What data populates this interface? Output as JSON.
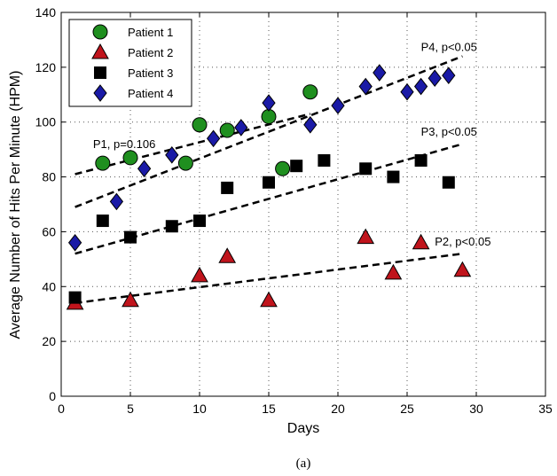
{
  "chart_data": {
    "type": "scatter",
    "xlabel": "Days",
    "ylabel": "Average Number of Hits Per Minute (HPM)",
    "caption": "(a)",
    "xlim": [
      0,
      35
    ],
    "ylim": [
      0,
      140
    ],
    "xticks": [
      0,
      5,
      10,
      15,
      20,
      25,
      30,
      35
    ],
    "yticks": [
      0,
      20,
      40,
      60,
      80,
      100,
      120,
      140
    ],
    "grid": true,
    "legend_position": "top-left",
    "series": [
      {
        "name": "Patient 1",
        "marker": "circle",
        "color": "#1f8f1f",
        "points": [
          [
            3,
            85
          ],
          [
            5,
            87
          ],
          [
            9,
            85
          ],
          [
            10,
            99
          ],
          [
            12,
            97
          ],
          [
            15,
            102
          ],
          [
            16,
            83
          ],
          [
            18,
            111
          ]
        ],
        "trend": [
          [
            1,
            81
          ],
          [
            18,
            103
          ]
        ],
        "annotation": {
          "text": "P1, p=0.106",
          "x": 2.3,
          "y": 90.5
        }
      },
      {
        "name": "Patient 2",
        "marker": "triangle",
        "color": "#c0141c",
        "points": [
          [
            1,
            34
          ],
          [
            5,
            35
          ],
          [
            10,
            44
          ],
          [
            12,
            51
          ],
          [
            15,
            35
          ],
          [
            22,
            58
          ],
          [
            24,
            45
          ],
          [
            26,
            56
          ],
          [
            29,
            46
          ]
        ],
        "trend": [
          [
            1,
            34
          ],
          [
            29,
            52
          ]
        ],
        "annotation": {
          "text": "P2, p<0.05",
          "x": 27,
          "y": 55
        }
      },
      {
        "name": "Patient 3",
        "marker": "square",
        "color": "#000000",
        "points": [
          [
            1,
            36
          ],
          [
            3,
            64
          ],
          [
            5,
            58
          ],
          [
            8,
            62
          ],
          [
            10,
            64
          ],
          [
            12,
            76
          ],
          [
            15,
            78
          ],
          [
            17,
            84
          ],
          [
            19,
            86
          ],
          [
            22,
            83
          ],
          [
            24,
            80
          ],
          [
            26,
            86
          ],
          [
            28,
            78
          ]
        ],
        "trend": [
          [
            1,
            52
          ],
          [
            29,
            92
          ]
        ],
        "annotation": {
          "text": "P3, p<0.05",
          "x": 26,
          "y": 95
        }
      },
      {
        "name": "Patient 4",
        "marker": "diamond",
        "color": "#1a1aa6",
        "points": [
          [
            1,
            56
          ],
          [
            4,
            71
          ],
          [
            6,
            83
          ],
          [
            8,
            88
          ],
          [
            11,
            94
          ],
          [
            13,
            98
          ],
          [
            15,
            107
          ],
          [
            18,
            99
          ],
          [
            20,
            106
          ],
          [
            22,
            113
          ],
          [
            23,
            118
          ],
          [
            25,
            111
          ],
          [
            26,
            113
          ],
          [
            27,
            116
          ],
          [
            28,
            117
          ]
        ],
        "trend": [
          [
            1,
            69
          ],
          [
            29,
            124
          ]
        ],
        "annotation": {
          "text": "P4, p<0.05",
          "x": 26,
          "y": 126
        }
      }
    ]
  }
}
